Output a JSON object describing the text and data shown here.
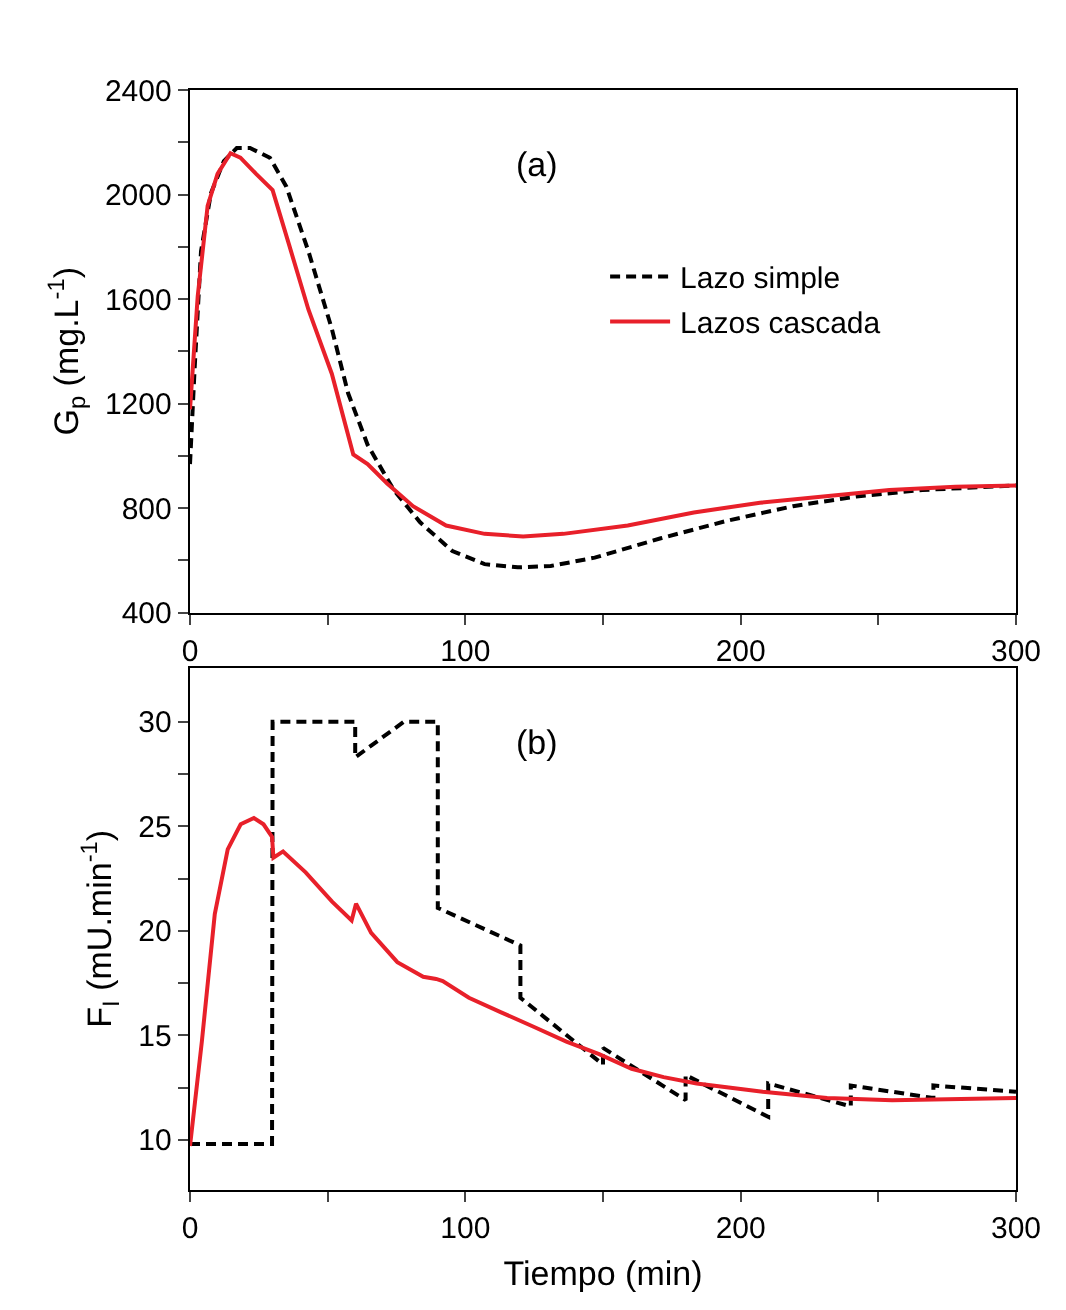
{
  "chart_data": [
    {
      "type": "line",
      "ylabel": "G$_{p}$ (mg.L$^{-1}$)",
      "annotations": [
        "(a)"
      ],
      "legend": "right",
      "xlim": [
        0,
        300
      ],
      "ylim": [
        400,
        2400
      ],
      "xticks": [
        0,
        {
          "value": 50,
          "label": null
        },
        100,
        {
          "value": 150,
          "label": null
        },
        200,
        {
          "value": 250,
          "label": null
        },
        300
      ],
      "yticks": [
        400,
        {
          "value": 600,
          "label": null
        },
        800,
        {
          "value": 1000,
          "label": null
        },
        1200,
        {
          "value": 1400,
          "label": null
        },
        1600,
        {
          "value": 1800,
          "label": null
        },
        2000,
        {
          "value": 2200,
          "label": null
        },
        2400
      ],
      "series": [
        {
          "name": "Lazo simple",
          "color": "#000000",
          "line_style": "dashed",
          "x": [
            0,
            1.7,
            4,
            7.6,
            12.3,
            17,
            21.8,
            29,
            35,
            43,
            51.5,
            57.4,
            64.5,
            74,
            83.5,
            95.3,
            107,
            119,
            131,
            147,
            171,
            195,
            219,
            242,
            266,
            300
          ],
          "values": [
            968,
            1338,
            1783,
            2005,
            2128,
            2178,
            2178,
            2141,
            2030,
            1783,
            1486,
            1240,
            1042,
            869,
            746,
            635,
            585,
            573,
            578,
            610,
            684,
            751,
            807,
            844,
            869,
            886
          ]
        },
        {
          "name": "Lazos cascada",
          "color": "#e8202a",
          "line_style": "solid",
          "x": [
            0,
            2.8,
            6.4,
            10,
            14.7,
            18.3,
            24,
            30,
            36,
            43,
            51.5,
            59.3,
            64.5,
            71.6,
            81,
            93,
            107,
            121,
            135.6,
            159,
            183,
            207,
            230,
            254,
            278,
            300
          ],
          "values": [
            1178,
            1610,
            1956,
            2079,
            2158,
            2141,
            2079,
            2017,
            1807,
            1560,
            1314,
            1005,
            968,
            894,
            807,
            733,
            701,
            691,
            701,
            733,
            783,
            820,
            844,
            869,
            881,
            886
          ]
        }
      ]
    },
    {
      "type": "line",
      "xlabel": "Tiempo (min)",
      "ylabel": "F$_{I}$ (mU.min$^{-1}$)",
      "annotations": [
        "(b)"
      ],
      "xlim": [
        0,
        300
      ],
      "ylim": [
        7.6,
        32.6
      ],
      "xticks": [
        0,
        {
          "value": 50,
          "label": null
        },
        100,
        {
          "value": 150,
          "label": null
        },
        200,
        {
          "value": 250,
          "label": null
        },
        300
      ],
      "yticks": [
        10,
        {
          "value": 12.5,
          "label": null
        },
        15,
        {
          "value": 17.5,
          "label": null
        },
        20,
        {
          "value": 22.5,
          "label": null
        },
        25,
        {
          "value": 27.5,
          "label": null
        },
        30
      ],
      "series": [
        {
          "color": "#000000",
          "line_style": "dashed",
          "x": [
            0,
            29.8,
            30,
            60,
            60,
            77.6,
            90,
            90,
            120,
            120,
            150,
            150,
            180,
            180,
            210,
            210,
            240,
            240,
            270,
            270,
            300
          ],
          "values": [
            9.8,
            9.8,
            30,
            30,
            28.3,
            30,
            30,
            21.1,
            19.3,
            16.8,
            13.6,
            14.4,
            11.9,
            13.1,
            11.1,
            12.7,
            11.6,
            12.6,
            12.0,
            12.6,
            12.3
          ]
        },
        {
          "color": "#e8202a",
          "line_style": "solid",
          "x": [
            0,
            4.3,
            9,
            13.7,
            18.4,
            23.2,
            26.7,
            29.8,
            30.3,
            33.8,
            42,
            51.6,
            58.7,
            60.3,
            65.8,
            75.3,
            84.7,
            89.4,
            91.8,
            101.3,
            113,
            125,
            136.7,
            148.6,
            160.4,
            172,
            184,
            208,
            231.4,
            255,
            300
          ],
          "values": [
            9.7,
            14.7,
            20.8,
            23.9,
            25.1,
            25.4,
            25.1,
            24.5,
            23.5,
            23.8,
            22.8,
            21.4,
            20.5,
            21.3,
            19.9,
            18.5,
            17.8,
            17.7,
            17.6,
            16.8,
            16.1,
            15.4,
            14.7,
            14.1,
            13.4,
            13.0,
            12.7,
            12.3,
            12.0,
            11.9,
            12.0
          ]
        }
      ]
    }
  ]
}
